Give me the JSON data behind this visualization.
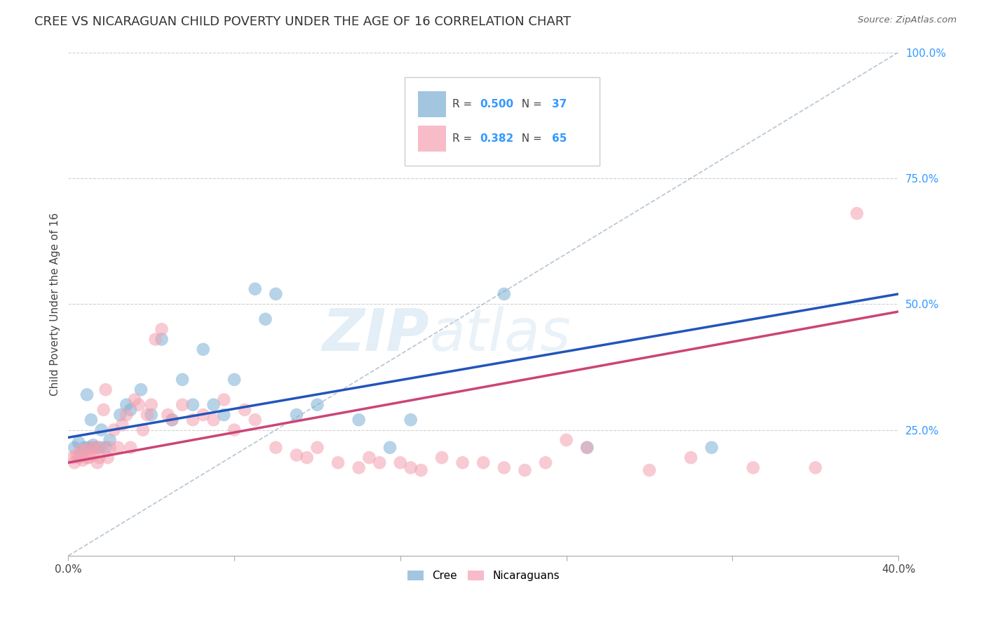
{
  "title": "CREE VS NICARAGUAN CHILD POVERTY UNDER THE AGE OF 16 CORRELATION CHART",
  "source": "Source: ZipAtlas.com",
  "ylabel": "Child Poverty Under the Age of 16",
  "xlim": [
    0.0,
    0.4
  ],
  "ylim": [
    0.0,
    1.0
  ],
  "xtick_positions": [
    0.0,
    0.08,
    0.16,
    0.24,
    0.32,
    0.4
  ],
  "xtick_labels": [
    "0.0%",
    "",
    "",
    "",
    "",
    "40.0%"
  ],
  "ytick_vals": [
    0.0,
    0.25,
    0.5,
    0.75,
    1.0
  ],
  "ytick_labels": [
    "",
    "25.0%",
    "50.0%",
    "75.0%",
    "100.0%"
  ],
  "grid_color": "#cccccc",
  "background_color": "#ffffff",
  "cree_color": "#7bafd4",
  "nicaraguan_color": "#f4a0b0",
  "cree_line_color": "#2255bb",
  "nicaraguan_line_color": "#cc4477",
  "diagonal_color": "#aaccee",
  "watermark_zip": "ZIP",
  "watermark_atlas": "atlas",
  "cree_R": "0.500",
  "cree_N": "37",
  "nicaraguan_R": "0.382",
  "nicaraguan_N": "65",
  "cree_line_x": [
    0.0,
    0.4
  ],
  "cree_line_y": [
    0.235,
    0.52
  ],
  "nicaraguan_line_x": [
    0.0,
    0.4
  ],
  "nicaraguan_line_y": [
    0.185,
    0.485
  ],
  "cree_points_x": [
    0.003,
    0.005,
    0.006,
    0.008,
    0.009,
    0.01,
    0.011,
    0.012,
    0.013,
    0.015,
    0.016,
    0.018,
    0.02,
    0.025,
    0.028,
    0.03,
    0.035,
    0.04,
    0.045,
    0.05,
    0.055,
    0.06,
    0.065,
    0.07,
    0.075,
    0.08,
    0.09,
    0.095,
    0.1,
    0.11,
    0.12,
    0.14,
    0.155,
    0.165,
    0.21,
    0.25,
    0.31
  ],
  "cree_points_y": [
    0.215,
    0.225,
    0.2,
    0.215,
    0.32,
    0.215,
    0.27,
    0.22,
    0.215,
    0.215,
    0.25,
    0.215,
    0.23,
    0.28,
    0.3,
    0.29,
    0.33,
    0.28,
    0.43,
    0.27,
    0.35,
    0.3,
    0.41,
    0.3,
    0.28,
    0.35,
    0.53,
    0.47,
    0.52,
    0.28,
    0.3,
    0.27,
    0.215,
    0.27,
    0.52,
    0.215,
    0.215
  ],
  "nicaraguan_points_x": [
    0.002,
    0.003,
    0.004,
    0.005,
    0.006,
    0.007,
    0.008,
    0.009,
    0.01,
    0.011,
    0.012,
    0.013,
    0.014,
    0.015,
    0.016,
    0.017,
    0.018,
    0.019,
    0.02,
    0.022,
    0.024,
    0.026,
    0.028,
    0.03,
    0.032,
    0.034,
    0.036,
    0.038,
    0.04,
    0.042,
    0.045,
    0.048,
    0.05,
    0.055,
    0.06,
    0.065,
    0.07,
    0.075,
    0.08,
    0.085,
    0.09,
    0.1,
    0.11,
    0.115,
    0.12,
    0.13,
    0.14,
    0.145,
    0.15,
    0.16,
    0.165,
    0.17,
    0.18,
    0.19,
    0.2,
    0.21,
    0.22,
    0.23,
    0.24,
    0.25,
    0.28,
    0.3,
    0.33,
    0.36,
    0.38
  ],
  "nicaraguan_points_y": [
    0.195,
    0.185,
    0.2,
    0.195,
    0.21,
    0.19,
    0.21,
    0.195,
    0.195,
    0.215,
    0.2,
    0.215,
    0.185,
    0.195,
    0.215,
    0.29,
    0.33,
    0.195,
    0.215,
    0.25,
    0.215,
    0.26,
    0.28,
    0.215,
    0.31,
    0.3,
    0.25,
    0.28,
    0.3,
    0.43,
    0.45,
    0.28,
    0.27,
    0.3,
    0.27,
    0.28,
    0.27,
    0.31,
    0.25,
    0.29,
    0.27,
    0.215,
    0.2,
    0.195,
    0.215,
    0.185,
    0.175,
    0.195,
    0.185,
    0.185,
    0.175,
    0.17,
    0.195,
    0.185,
    0.185,
    0.175,
    0.17,
    0.185,
    0.23,
    0.215,
    0.17,
    0.195,
    0.175,
    0.175,
    0.68
  ]
}
